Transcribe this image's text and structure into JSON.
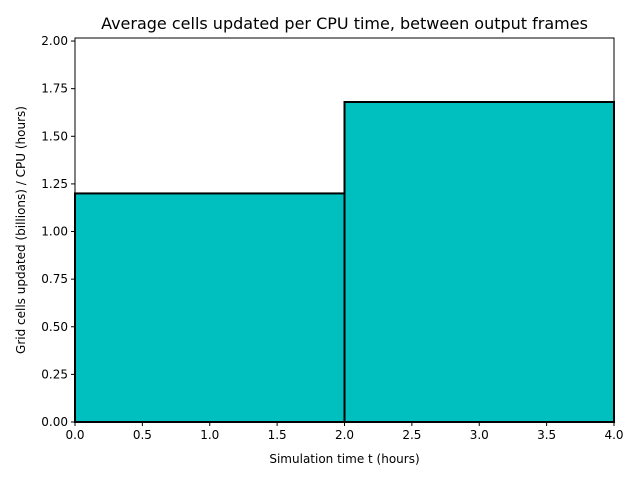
{
  "chart_data": {
    "type": "bar",
    "title": "Average cells updated per CPU time, between output frames",
    "xlabel": "Simulation time t (hours)",
    "ylabel": "Grid cells updated (billions) / CPU (hours)",
    "xlim": [
      0.0,
      4.0
    ],
    "ylim": [
      0.0,
      2.016
    ],
    "grid": false,
    "bins": [
      {
        "x_start": 0.0,
        "x_end": 2.0,
        "value": 1.2
      },
      {
        "x_start": 2.0,
        "x_end": 4.0,
        "value": 1.68
      }
    ],
    "x_ticks": [
      "0.0",
      "0.5",
      "1.0",
      "1.5",
      "2.0",
      "2.5",
      "3.0",
      "3.5",
      "4.0"
    ],
    "y_ticks": [
      "0.00",
      "0.25",
      "0.50",
      "0.75",
      "1.00",
      "1.25",
      "1.50",
      "1.75",
      "2.00"
    ],
    "colors": {
      "bar_fill": "#00bfbf",
      "bar_edge": "#000000",
      "axes": "#000000",
      "background": "#ffffff"
    }
  }
}
